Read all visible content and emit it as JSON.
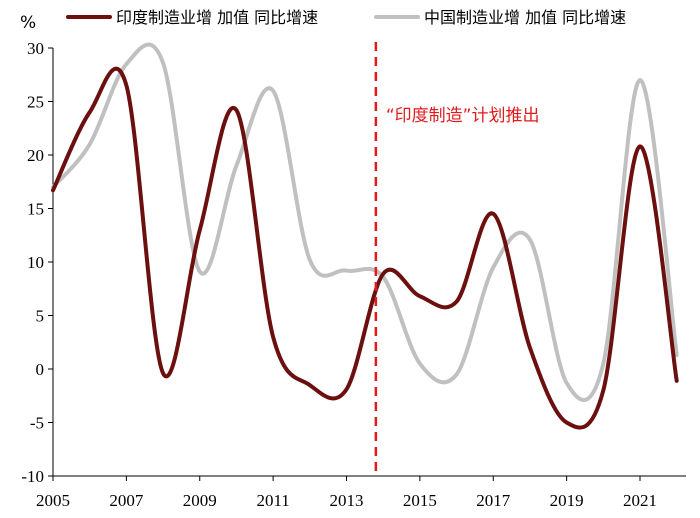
{
  "chart_data": {
    "type": "line",
    "ylabel": "%",
    "ylim": [
      -10,
      30
    ],
    "yticks": [
      30,
      25,
      20,
      15,
      10,
      5,
      0,
      -5,
      -10
    ],
    "xlim": [
      2005,
      2022.2
    ],
    "xticks": [
      2005,
      2007,
      2009,
      2011,
      2013,
      2015,
      2017,
      2019,
      2021
    ],
    "grid": false,
    "legend_position": "top",
    "series": [
      {
        "name": "印度制造业增 加值 同比增速",
        "color": "#6b0f0f",
        "x": [
          2005,
          2006,
          2007,
          2008,
          2009,
          2010,
          2011,
          2012,
          2013,
          2014,
          2015,
          2016,
          2017,
          2018,
          2019,
          2020,
          2021,
          2022
        ],
        "y": [
          16.7,
          24.0,
          26.5,
          -0.4,
          13.0,
          24.2,
          3.0,
          -1.5,
          -1.9,
          8.9,
          6.8,
          6.3,
          14.5,
          2.0,
          -5.0,
          -2.0,
          20.8,
          -1.1
        ]
      },
      {
        "name": "中国制造业增 加值 同比增速",
        "color": "#c0c0c0",
        "x": [
          2005,
          2006,
          2007,
          2008,
          2009,
          2010,
          2011,
          2012,
          2013,
          2014,
          2015,
          2016,
          2017,
          2018,
          2019,
          2020,
          2021,
          2022
        ],
        "y": [
          17.0,
          21.0,
          28.5,
          28.6,
          9.1,
          19.0,
          26.0,
          10.2,
          9.2,
          8.6,
          0.5,
          -0.5,
          9.5,
          12.1,
          -1.3,
          0.5,
          27.0,
          1.3
        ]
      }
    ],
    "annotations": [
      {
        "text": "“印度制造”计划推出",
        "x": 2013.8,
        "color": "#e31a1c"
      }
    ]
  }
}
